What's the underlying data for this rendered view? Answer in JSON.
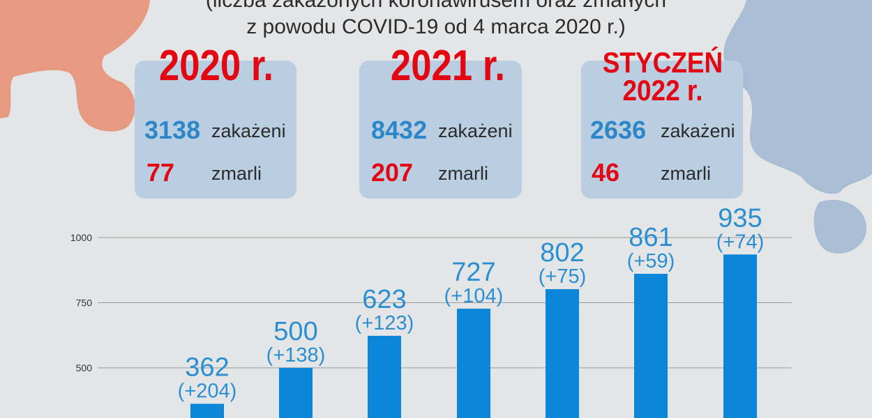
{
  "header": {
    "line1": "(liczba zakażonych koronawirusem oraz zmarłych",
    "line2": "z powodu COVID-19 od 4 marca 2020 r.)"
  },
  "panels": [
    {
      "year": "2020 r.",
      "infected": "3138",
      "infected_label": "zakażeni",
      "deaths": "77",
      "deaths_label": "zmarli"
    },
    {
      "year": "2021 r.",
      "infected": "8432",
      "infected_label": "zakażeni",
      "deaths": "207",
      "deaths_label": "zmarli"
    },
    {
      "year_line1": "STYCZEŃ",
      "year_line2": "2022 r.",
      "infected": "2636",
      "infected_label": "zakażeni",
      "deaths": "46",
      "deaths_label": "zmarli"
    }
  ],
  "colors": {
    "bar": "#0a87d8",
    "value_label": "#2a8fd2",
    "grid": "#9a9a9a",
    "highlight": "#e30613"
  },
  "chart_data": {
    "type": "bar",
    "yticks": [
      "1000",
      "750",
      "500"
    ],
    "ylim": [
      300,
      1000
    ],
    "grid": true,
    "values": [
      362,
      500,
      623,
      727,
      802,
      861,
      935
    ],
    "value_labels": [
      "362",
      "500",
      "623",
      "727",
      "802",
      "861",
      "935"
    ],
    "delta_labels": [
      "(+204)",
      "(+138)",
      "(+123)",
      "(+104)",
      "(+75)",
      "(+59)",
      "(+74)"
    ]
  }
}
